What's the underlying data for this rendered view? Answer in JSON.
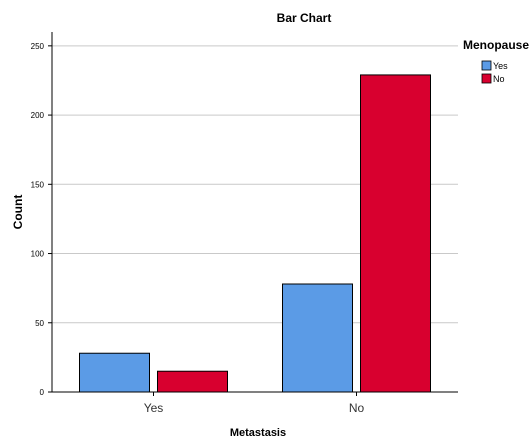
{
  "chart_data": {
    "type": "bar",
    "title": "Bar Chart",
    "xlabel": "Metastasis",
    "ylabel": "Count",
    "categories": [
      "Yes",
      "No"
    ],
    "series": [
      {
        "name": "Yes",
        "values": [
          28,
          78
        ],
        "color": "#5b9be6"
      },
      {
        "name": "No",
        "values": [
          15,
          229
        ],
        "color": "#d8002f"
      }
    ],
    "ylim": [
      0,
      260
    ],
    "yticks": [
      0,
      50,
      100,
      150,
      200,
      250
    ],
    "grid": true,
    "legend": {
      "title": "Menopause",
      "position": "top-right"
    }
  }
}
